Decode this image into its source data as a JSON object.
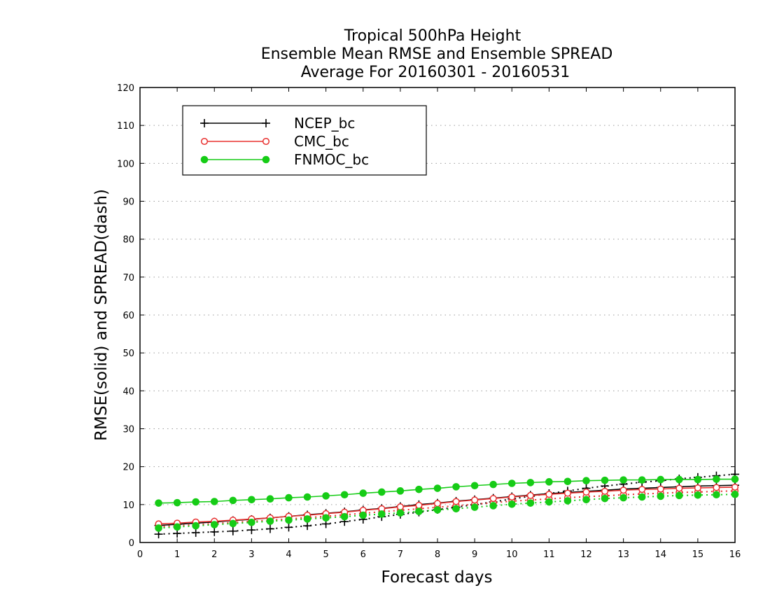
{
  "chart_data": {
    "type": "line",
    "title": [
      "Tropical 500hPa Height",
      "Ensemble Mean RMSE and Ensemble SPREAD",
      "Average For 20160301 - 20160531"
    ],
    "xlabel": "Forecast days",
    "ylabel": "RMSE(solid) and SPREAD(dash)",
    "xlim": [
      0,
      16
    ],
    "ylim": [
      0,
      120
    ],
    "xticks": [
      "0",
      "1",
      "2",
      "3",
      "4",
      "5",
      "6",
      "7",
      "8",
      "9",
      "10",
      "11",
      "12",
      "13",
      "14",
      "15",
      "16"
    ],
    "yticks": [
      "0",
      "10",
      "20",
      "30",
      "40",
      "50",
      "60",
      "70",
      "80",
      "90",
      "100",
      "110",
      "120"
    ],
    "grid": "horizontal dotted",
    "legend_position": "top-left",
    "x": [
      0.5,
      1,
      1.5,
      2,
      2.5,
      3,
      3.5,
      4,
      4.5,
      5,
      5.5,
      6,
      6.5,
      7,
      7.5,
      8,
      8.5,
      9,
      9.5,
      10,
      10.5,
      11,
      11.5,
      12,
      12.5,
      13,
      13.5,
      14,
      14.5,
      15,
      15.5,
      16
    ],
    "series": [
      {
        "name": "NCEP_bc",
        "color": "#000000",
        "marker": "plus",
        "rmse": [
          4.5,
          4.8,
          5.1,
          5.4,
          5.8,
          6.1,
          6.5,
          6.9,
          7.3,
          7.7,
          8.1,
          8.6,
          9.0,
          9.5,
          10.0,
          10.4,
          10.9,
          11.3,
          11.7,
          12.1,
          12.5,
          12.9,
          13.2,
          13.5,
          13.8,
          14.1,
          14.3,
          14.5,
          14.7,
          14.9,
          15.0,
          15.1
        ],
        "spread": [
          2.2,
          2.4,
          2.6,
          2.8,
          3.0,
          3.3,
          3.6,
          4.0,
          4.4,
          4.9,
          5.5,
          6.1,
          6.8,
          7.4,
          8.0,
          8.7,
          9.3,
          10.0,
          10.7,
          11.5,
          12.2,
          12.9,
          13.6,
          14.3,
          14.9,
          15.4,
          15.9,
          16.3,
          16.8,
          17.2,
          17.6,
          18.0
        ]
      },
      {
        "name": "CMC_bc",
        "color": "#e8302f",
        "marker": "open-circle",
        "rmse": [
          4.9,
          5.1,
          5.4,
          5.6,
          5.9,
          6.2,
          6.5,
          6.9,
          7.2,
          7.6,
          8.0,
          8.5,
          8.9,
          9.4,
          9.8,
          10.3,
          10.8,
          11.2,
          11.6,
          12.0,
          12.4,
          12.7,
          13.0,
          13.3,
          13.5,
          13.8,
          14.0,
          14.1,
          14.3,
          14.4,
          14.5,
          14.6
        ],
        "spread": [
          4.2,
          4.4,
          4.7,
          5.0,
          5.3,
          5.6,
          5.9,
          6.2,
          6.6,
          6.9,
          7.3,
          7.7,
          8.1,
          8.5,
          8.9,
          9.3,
          9.7,
          10.1,
          10.5,
          10.9,
          11.2,
          11.5,
          11.8,
          12.1,
          12.3,
          12.6,
          12.8,
          13.0,
          13.2,
          13.3,
          13.5,
          13.6
        ]
      },
      {
        "name": "FNMOC_bc",
        "color": "#16cc16",
        "marker": "filled-circle",
        "rmse": [
          10.4,
          10.5,
          10.7,
          10.8,
          11.1,
          11.3,
          11.5,
          11.8,
          12.0,
          12.3,
          12.6,
          13.0,
          13.3,
          13.6,
          14.0,
          14.3,
          14.7,
          15.0,
          15.3,
          15.6,
          15.8,
          16.0,
          16.1,
          16.3,
          16.4,
          16.5,
          16.5,
          16.6,
          16.6,
          16.6,
          16.7,
          16.7
        ],
        "spread": [
          3.8,
          4.1,
          4.4,
          4.7,
          5.0,
          5.3,
          5.6,
          5.9,
          6.2,
          6.5,
          6.8,
          7.2,
          7.5,
          7.8,
          8.2,
          8.6,
          8.9,
          9.3,
          9.7,
          10.1,
          10.4,
          10.7,
          11.0,
          11.3,
          11.6,
          11.8,
          12.0,
          12.2,
          12.4,
          12.5,
          12.6,
          12.7
        ]
      }
    ]
  }
}
